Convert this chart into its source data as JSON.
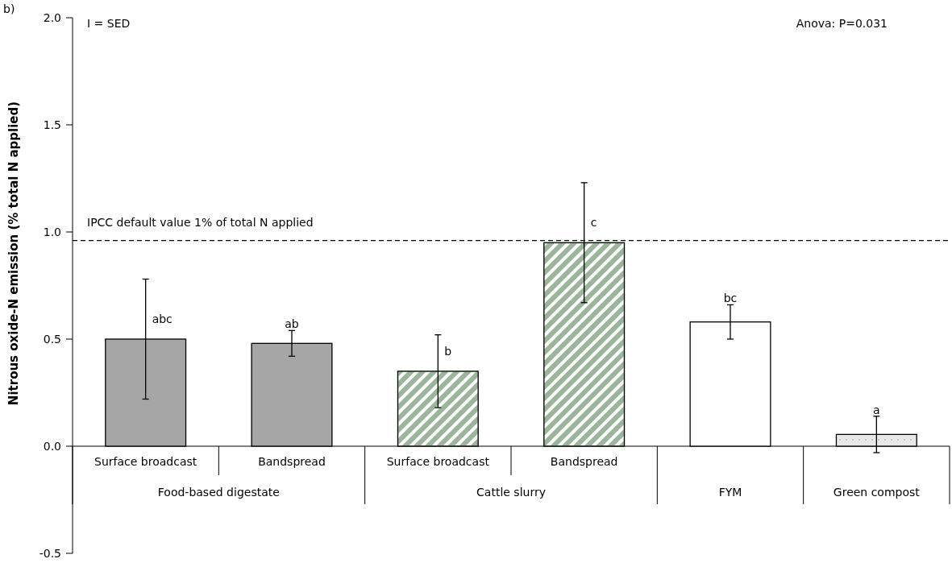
{
  "chart_data": {
    "type": "bar",
    "ylabel": "Nitrous oxide-N emission (% total N applied)",
    "categories": [
      "Surface broadcast",
      "Bandspread",
      "Surface broadcast",
      "Bandspread",
      null,
      null
    ],
    "values": [
      0.5,
      0.48,
      0.35,
      0.95,
      0.58,
      0.055
    ],
    "errors": [
      0.28,
      0.06,
      0.17,
      0.28,
      0.08,
      0.085
    ],
    "colors": [
      "#a6a6a6",
      "#a6a6a6",
      "#9bb59b",
      "#9bb59b",
      "#ffffff",
      "#e8e8e8"
    ],
    "value_labels": [
      "abc",
      "ab",
      "b",
      "c",
      "bc",
      "a"
    ],
    "ylim": [
      -0.5,
      2.0
    ],
    "yticks": [
      {
        "value": -0.5,
        "label": "-0.5"
      },
      {
        "value": 0,
        "label": "0.0"
      },
      {
        "value": 0.5,
        "label": "0.5"
      },
      {
        "value": 1,
        "label": "1.0"
      },
      {
        "value": 1.5,
        "label": "1.5"
      },
      {
        "value": 2,
        "label": "2.0"
      }
    ],
    "ref_lines": [
      {
        "axis": "y",
        "value": 0.96,
        "label": "IPCC default value 1% of total N applied",
        "line_style": "dashed",
        "color": "#000000"
      }
    ],
    "annotations": [
      "Food-based digestate",
      "Cattle slurry",
      "FYM",
      "Green compost",
      "b)",
      "I = SED",
      "Anova: P=0.031"
    ],
    "orientation": "vertical"
  }
}
